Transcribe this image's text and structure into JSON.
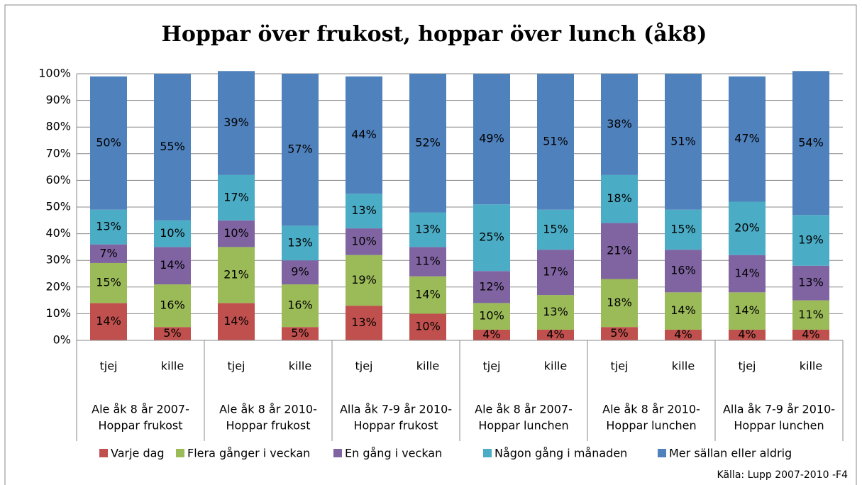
{
  "chart_data": {
    "type": "stacked_bar",
    "title": "Hoppar över frukost, hoppar över lunch (åk8)",
    "categories": [
      "tjej",
      "kille",
      "tjej",
      "kille",
      "tjej",
      "kille",
      "tjej",
      "kille",
      "tjej",
      "kille",
      "tjej",
      "kille"
    ],
    "groups": [
      [
        "Ale åk 8 år 2007-",
        "Hoppar frukost"
      ],
      [
        "Ale åk 8 år 2010-",
        "Hoppar frukost"
      ],
      [
        "Alla åk 7-9 år 2010-",
        "Hoppar frukost"
      ],
      [
        "Ale åk 8 år 2007-",
        "Hoppar lunchen"
      ],
      [
        "Ale åk 8 år 2010-",
        "Hoppar lunchen"
      ],
      [
        "Alla åk 7-9 år 2010-",
        "Hoppar lunchen"
      ]
    ],
    "series": [
      {
        "name": "Varje dag",
        "color": "#c0504d",
        "values": [
          14,
          5,
          14,
          5,
          13,
          10,
          4,
          4,
          5,
          4,
          4,
          4
        ],
        "value_labels": [
          "14%",
          "5%",
          "14%",
          "5%",
          "13%",
          "10%",
          "4%",
          "4%",
          "5%",
          "4%",
          "4%",
          "4%"
        ]
      },
      {
        "name": "Flera gånger i veckan",
        "color": "#9bbb59",
        "values": [
          15,
          16,
          21,
          16,
          19,
          14,
          10,
          13,
          18,
          14,
          14,
          11
        ],
        "value_labels": [
          "15%",
          "16%",
          "21%",
          "16%",
          "19%",
          "14%",
          "10%",
          "13%",
          "18%",
          "14%",
          "14%",
          "11%"
        ]
      },
      {
        "name": "En gång i veckan",
        "color": "#8064a2",
        "values": [
          7,
          14,
          10,
          9,
          10,
          11,
          12,
          17,
          21,
          16,
          14,
          13
        ],
        "value_labels": [
          "7%",
          "14%",
          "10%",
          "9%",
          "10%",
          "11%",
          "12%",
          "17%",
          "21%",
          "16%",
          "14%",
          "13%"
        ]
      },
      {
        "name": "Någon gång i månaden",
        "color": "#4bacc6",
        "values": [
          13,
          10,
          17,
          13,
          13,
          13,
          25,
          15,
          18,
          15,
          20,
          19
        ],
        "value_labels": [
          "13%",
          "10%",
          "17%",
          "13%",
          "13%",
          "13%",
          "25%",
          "15%",
          "18%",
          "15%",
          "20%",
          "19%"
        ]
      },
      {
        "name": "Mer sällan eller aldrig",
        "color": "#4f81bd",
        "values": [
          50,
          55,
          39,
          57,
          44,
          52,
          49,
          51,
          38,
          51,
          47,
          54
        ],
        "value_labels": [
          "50%",
          "55%",
          "39%",
          "57%",
          "44%",
          "52%",
          "49%",
          "51%",
          "38%",
          "51%",
          "47%",
          "54%"
        ]
      }
    ],
    "ylim": [
      0,
      100
    ],
    "yticks": [
      {
        "value": 0,
        "label": "0%"
      },
      {
        "value": 10,
        "label": "10%"
      },
      {
        "value": 20,
        "label": "20%"
      },
      {
        "value": 30,
        "label": "30%"
      },
      {
        "value": 40,
        "label": "40%"
      },
      {
        "value": 50,
        "label": "50%"
      },
      {
        "value": 60,
        "label": "60%"
      },
      {
        "value": 70,
        "label": "70%"
      },
      {
        "value": 80,
        "label": "80%"
      },
      {
        "value": 90,
        "label": "90%"
      },
      {
        "value": 100,
        "label": "100%"
      }
    ],
    "grid": true,
    "legend": "bottom",
    "source": "Källa: Lupp 2007-2010 -F4"
  }
}
